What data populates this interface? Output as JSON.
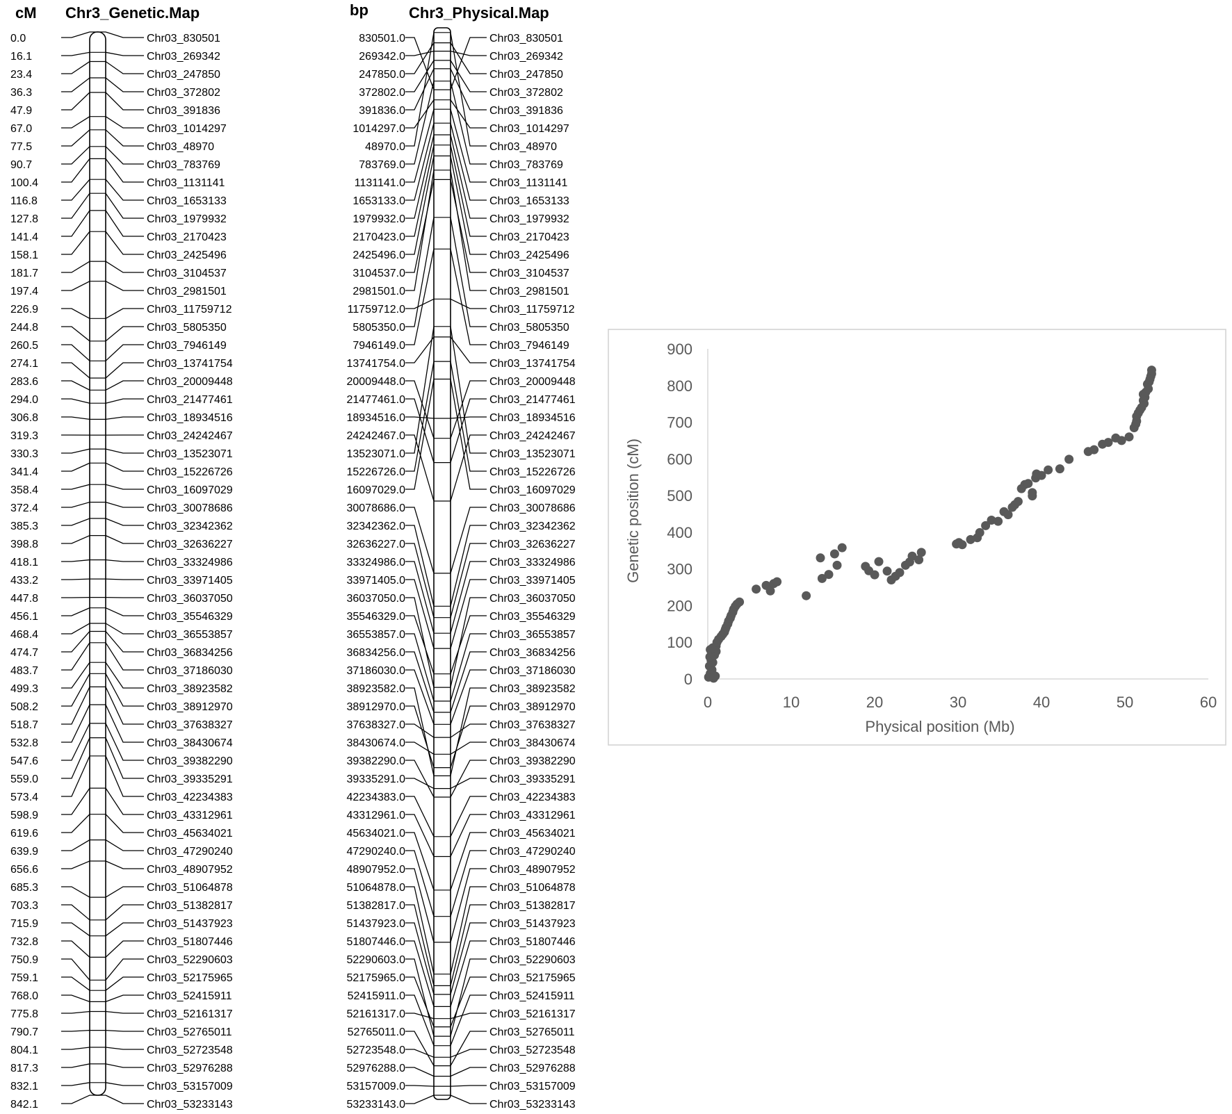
{
  "genetic_map": {
    "unit_label": "cM",
    "title": "Chr3_Genetic.Map"
  },
  "physical_map": {
    "unit_label": "bp",
    "title": "Chr3_Physical.Map"
  },
  "markers": [
    {
      "name": "Chr03_830501",
      "cM": "0.0",
      "bp": "830501.0"
    },
    {
      "name": "Chr03_269342",
      "cM": "16.1",
      "bp": "269342.0"
    },
    {
      "name": "Chr03_247850",
      "cM": "23.4",
      "bp": "247850.0"
    },
    {
      "name": "Chr03_372802",
      "cM": "36.3",
      "bp": "372802.0"
    },
    {
      "name": "Chr03_391836",
      "cM": "47.9",
      "bp": "391836.0"
    },
    {
      "name": "Chr03_1014297",
      "cM": "67.0",
      "bp": "1014297.0"
    },
    {
      "name": "Chr03_48970",
      "cM": "77.5",
      "bp": "48970.0"
    },
    {
      "name": "Chr03_783769",
      "cM": "90.7",
      "bp": "783769.0"
    },
    {
      "name": "Chr03_1131141",
      "cM": "100.4",
      "bp": "1131141.0"
    },
    {
      "name": "Chr03_1653133",
      "cM": "116.8",
      "bp": "1653133.0"
    },
    {
      "name": "Chr03_1979932",
      "cM": "127.8",
      "bp": "1979932.0"
    },
    {
      "name": "Chr03_2170423",
      "cM": "141.4",
      "bp": "2170423.0"
    },
    {
      "name": "Chr03_2425496",
      "cM": "158.1",
      "bp": "2425496.0"
    },
    {
      "name": "Chr03_3104537",
      "cM": "181.7",
      "bp": "3104537.0"
    },
    {
      "name": "Chr03_2981501",
      "cM": "197.4",
      "bp": "2981501.0"
    },
    {
      "name": "Chr03_11759712",
      "cM": "226.9",
      "bp": "11759712.0"
    },
    {
      "name": "Chr03_5805350",
      "cM": "244.8",
      "bp": "5805350.0"
    },
    {
      "name": "Chr03_7946149",
      "cM": "260.5",
      "bp": "7946149.0"
    },
    {
      "name": "Chr03_13741754",
      "cM": "274.1",
      "bp": "13741754.0"
    },
    {
      "name": "Chr03_20009448",
      "cM": "283.6",
      "bp": "20009448.0"
    },
    {
      "name": "Chr03_21477461",
      "cM": "294.0",
      "bp": "21477461.0"
    },
    {
      "name": "Chr03_18934516",
      "cM": "306.8",
      "bp": "18934516.0"
    },
    {
      "name": "Chr03_24242467",
      "cM": "319.3",
      "bp": "24242467.0"
    },
    {
      "name": "Chr03_13523071",
      "cM": "330.3",
      "bp": "13523071.0"
    },
    {
      "name": "Chr03_15226726",
      "cM": "341.4",
      "bp": "15226726.0"
    },
    {
      "name": "Chr03_16097029",
      "cM": "358.4",
      "bp": "16097029.0"
    },
    {
      "name": "Chr03_30078686",
      "cM": "372.4",
      "bp": "30078686.0"
    },
    {
      "name": "Chr03_32342362",
      "cM": "385.3",
      "bp": "32342362.0"
    },
    {
      "name": "Chr03_32636227",
      "cM": "398.8",
      "bp": "32636227.0"
    },
    {
      "name": "Chr03_33324986",
      "cM": "418.1",
      "bp": "33324986.0"
    },
    {
      "name": "Chr03_33971405",
      "cM": "433.2",
      "bp": "33971405.0"
    },
    {
      "name": "Chr03_36037050",
      "cM": "447.8",
      "bp": "36037050.0"
    },
    {
      "name": "Chr03_35546329",
      "cM": "456.1",
      "bp": "35546329.0"
    },
    {
      "name": "Chr03_36553857",
      "cM": "468.4",
      "bp": "36553857.0"
    },
    {
      "name": "Chr03_36834256",
      "cM": "474.7",
      "bp": "36834256.0"
    },
    {
      "name": "Chr03_37186030",
      "cM": "483.7",
      "bp": "37186030.0"
    },
    {
      "name": "Chr03_38923582",
      "cM": "499.3",
      "bp": "38923582.0"
    },
    {
      "name": "Chr03_38912970",
      "cM": "508.2",
      "bp": "38912970.0"
    },
    {
      "name": "Chr03_37638327",
      "cM": "518.7",
      "bp": "37638327.0"
    },
    {
      "name": "Chr03_38430674",
      "cM": "532.8",
      "bp": "38430674.0"
    },
    {
      "name": "Chr03_39382290",
      "cM": "547.6",
      "bp": "39382290.0"
    },
    {
      "name": "Chr03_39335291",
      "cM": "559.0",
      "bp": "39335291.0"
    },
    {
      "name": "Chr03_42234383",
      "cM": "573.4",
      "bp": "42234383.0"
    },
    {
      "name": "Chr03_43312961",
      "cM": "598.9",
      "bp": "43312961.0"
    },
    {
      "name": "Chr03_45634021",
      "cM": "619.6",
      "bp": "45634021.0"
    },
    {
      "name": "Chr03_47290240",
      "cM": "639.9",
      "bp": "47290240.0"
    },
    {
      "name": "Chr03_48907952",
      "cM": "656.6",
      "bp": "48907952.0"
    },
    {
      "name": "Chr03_51064878",
      "cM": "685.3",
      "bp": "51064878.0"
    },
    {
      "name": "Chr03_51382817",
      "cM": "703.3",
      "bp": "51382817.0"
    },
    {
      "name": "Chr03_51437923",
      "cM": "715.9",
      "bp": "51437923.0"
    },
    {
      "name": "Chr03_51807446",
      "cM": "732.8",
      "bp": "51807446.0"
    },
    {
      "name": "Chr03_52290603",
      "cM": "750.9",
      "bp": "52290603.0"
    },
    {
      "name": "Chr03_52175965",
      "cM": "759.1",
      "bp": "52175965.0"
    },
    {
      "name": "Chr03_52415911",
      "cM": "768.0",
      "bp": "52415911.0"
    },
    {
      "name": "Chr03_52161317",
      "cM": "775.8",
      "bp": "52161317.0"
    },
    {
      "name": "Chr03_52765011",
      "cM": "790.7",
      "bp": "52765011.0"
    },
    {
      "name": "Chr03_52723548",
      "cM": "804.1",
      "bp": "52723548.0"
    },
    {
      "name": "Chr03_52976288",
      "cM": "817.3",
      "bp": "52976288.0"
    },
    {
      "name": "Chr03_53157009",
      "cM": "832.1",
      "bp": "53157009.0"
    },
    {
      "name": "Chr03_53233143",
      "cM": "842.1",
      "bp": "53233143.0"
    }
  ],
  "chart_data": {
    "type": "scatter",
    "title": "",
    "xlabel": "Physical position (Mb)",
    "ylabel": "Genetic position (cM)",
    "xlim": [
      0,
      60
    ],
    "ylim": [
      0,
      900
    ],
    "xticks": [
      "0",
      "10",
      "20",
      "30",
      "40",
      "50",
      "60"
    ],
    "yticks": [
      "0",
      "100",
      "200",
      "300",
      "400",
      "500",
      "600",
      "700",
      "800",
      "900"
    ],
    "grid": false,
    "legend": "none",
    "marker_color": "#595959",
    "points": [
      [
        0.1,
        5
      ],
      [
        0.3,
        15
      ],
      [
        0.5,
        25
      ],
      [
        0.7,
        2
      ],
      [
        0.9,
        8
      ],
      [
        0.2,
        35
      ],
      [
        0.4,
        50
      ],
      [
        0.6,
        45
      ],
      [
        0.25,
        60
      ],
      [
        0.45,
        70
      ],
      [
        0.8,
        65
      ],
      [
        1.0,
        75
      ],
      [
        0.3,
        80
      ],
      [
        0.6,
        85
      ],
      [
        1.0,
        90
      ],
      [
        1.1,
        100
      ],
      [
        1.3,
        108
      ],
      [
        1.6,
        116
      ],
      [
        1.8,
        122
      ],
      [
        2.0,
        128
      ],
      [
        2.1,
        135
      ],
      [
        2.2,
        141
      ],
      [
        2.4,
        150
      ],
      [
        2.5,
        158
      ],
      [
        2.7,
        166
      ],
      [
        2.8,
        173
      ],
      [
        3.0,
        182
      ],
      [
        3.1,
        190
      ],
      [
        3.3,
        198
      ],
      [
        3.5,
        204
      ],
      [
        3.8,
        210
      ],
      [
        5.8,
        245
      ],
      [
        7.0,
        255
      ],
      [
        7.5,
        240
      ],
      [
        7.9,
        260
      ],
      [
        8.3,
        265
      ],
      [
        11.8,
        227
      ],
      [
        13.5,
        330
      ],
      [
        13.7,
        274
      ],
      [
        14.5,
        285
      ],
      [
        15.2,
        341
      ],
      [
        15.5,
        310
      ],
      [
        16.1,
        358
      ],
      [
        18.9,
        307
      ],
      [
        19.3,
        295
      ],
      [
        20.0,
        284
      ],
      [
        20.5,
        320
      ],
      [
        21.5,
        294
      ],
      [
        22.0,
        270
      ],
      [
        22.5,
        280
      ],
      [
        23.0,
        290
      ],
      [
        23.7,
        310
      ],
      [
        24.2,
        319
      ],
      [
        24.5,
        335
      ],
      [
        25.3,
        325
      ],
      [
        25.6,
        345
      ],
      [
        29.8,
        368
      ],
      [
        30.1,
        372
      ],
      [
        30.5,
        366
      ],
      [
        31.5,
        380
      ],
      [
        32.3,
        385
      ],
      [
        32.6,
        399
      ],
      [
        33.3,
        418
      ],
      [
        34.0,
        433
      ],
      [
        34.8,
        430
      ],
      [
        35.5,
        456
      ],
      [
        36.0,
        448
      ],
      [
        36.5,
        468
      ],
      [
        36.8,
        475
      ],
      [
        37.2,
        484
      ],
      [
        37.6,
        519
      ],
      [
        38.0,
        530
      ],
      [
        38.4,
        533
      ],
      [
        38.9,
        499
      ],
      [
        38.9,
        508
      ],
      [
        39.3,
        548
      ],
      [
        39.4,
        559
      ],
      [
        40.0,
        555
      ],
      [
        40.8,
        570
      ],
      [
        42.2,
        573
      ],
      [
        43.3,
        599
      ],
      [
        45.6,
        620
      ],
      [
        46.3,
        625
      ],
      [
        47.3,
        640
      ],
      [
        48.0,
        645
      ],
      [
        48.9,
        657
      ],
      [
        49.6,
        650
      ],
      [
        50.5,
        660
      ],
      [
        51.1,
        685
      ],
      [
        51.3,
        695
      ],
      [
        51.4,
        703
      ],
      [
        51.4,
        716
      ],
      [
        51.6,
        725
      ],
      [
        51.8,
        733
      ],
      [
        52.0,
        740
      ],
      [
        52.2,
        759
      ],
      [
        52.2,
        776
      ],
      [
        52.3,
        751
      ],
      [
        52.4,
        768
      ],
      [
        52.5,
        782
      ],
      [
        52.7,
        804
      ],
      [
        52.8,
        791
      ],
      [
        52.9,
        810
      ],
      [
        53.0,
        817
      ],
      [
        53.1,
        825
      ],
      [
        53.2,
        832
      ],
      [
        53.2,
        842
      ]
    ]
  }
}
